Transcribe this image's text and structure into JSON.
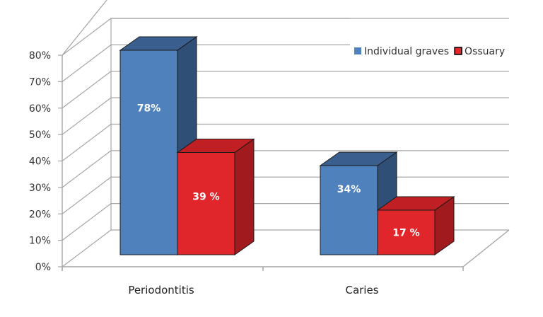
{
  "chart_data": {
    "type": "bar",
    "style": "3d-clustered-column",
    "title": "",
    "xlabel": "",
    "ylabel": "",
    "categories": [
      "Periodontitis",
      "Caries"
    ],
    "series": [
      {
        "name": "Individual graves",
        "values": [
          78,
          34
        ],
        "labels": [
          "78%",
          "34%"
        ],
        "color": "#4f81bd",
        "side_color": "#2f4f77",
        "top_color": "#3a5f8f"
      },
      {
        "name": "Ossuary",
        "values": [
          39,
          17
        ],
        "labels": [
          "39 %",
          "17 %"
        ],
        "color": "#e0262a",
        "side_color": "#a01a1e",
        "top_color": "#c01f23"
      }
    ],
    "ylim": [
      0,
      80
    ],
    "yticks": [
      0,
      10,
      20,
      30,
      40,
      50,
      60,
      70,
      80
    ],
    "ytick_labels": [
      "0%",
      "10%",
      "20%",
      "30%",
      "40%",
      "50%",
      "60%",
      "70%",
      "80%"
    ],
    "grid": true,
    "legend": {
      "placement": "top-right",
      "entries": [
        "Individual graves",
        "Ossuary"
      ]
    }
  }
}
